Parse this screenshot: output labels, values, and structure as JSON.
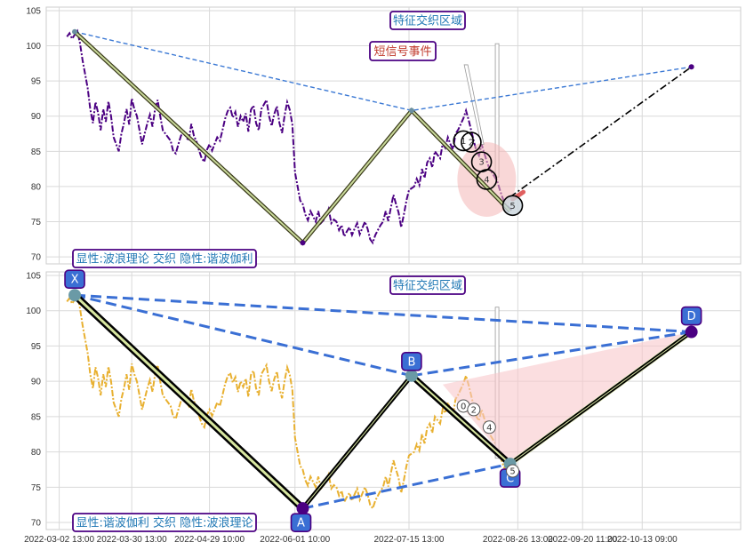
{
  "chart_data": [
    {
      "type": "line",
      "panel": "top",
      "ylim": [
        69,
        105.5
      ],
      "yticks": [
        70,
        75,
        80,
        85,
        90,
        95,
        100,
        105
      ],
      "grid": true,
      "price_series": {
        "color": "#4b0082",
        "style": "dash-dot",
        "values": [
          101.3,
          101.8,
          101,
          101.6,
          102.1,
          100.4,
          98,
          96,
          94,
          91,
          89,
          92,
          90.5,
          88,
          91,
          89.2,
          92.1,
          90,
          87,
          85,
          87.5,
          89,
          91,
          88.8,
          92.5,
          91,
          90,
          88,
          86,
          87.5,
          89,
          90.2,
          88.5,
          91,
          92.3,
          90,
          88,
          87,
          86.5,
          85,
          84.7,
          86,
          87.2,
          88,
          87,
          86.5,
          88.9,
          87.2,
          86.4,
          85.1,
          84,
          83.5,
          85.2,
          86,
          85.1,
          87,
          86.5,
          88,
          89.6,
          90.7,
          91.2,
          89.8,
          90.6,
          88.5,
          90,
          89.2,
          90.4,
          87.8,
          90.9,
          91.5,
          89,
          88,
          91,
          92.3,
          90,
          88.6,
          90.3,
          91.4,
          89,
          87.6,
          90.1,
          92,
          90.9,
          88.8,
          82,
          80,
          78,
          77.5,
          76,
          75.2,
          76.5,
          75,
          76.5,
          74.8,
          75.2,
          75.9,
          76.8,
          74.8,
          75.3,
          75,
          73.8,
          74.5,
          72.9,
          73.6,
          74.2,
          73.1,
          74,
          74.8,
          73.2,
          75,
          74,
          72.5,
          72,
          73.1,
          73.8,
          74.5,
          75,
          76.5,
          75.1,
          77,
          78.8,
          77.5,
          76.3,
          74.2,
          76,
          78,
          79.5,
          80,
          81.1,
          80.2,
          82.5,
          81.2,
          83.4,
          84,
          82.7,
          85,
          84.5,
          84,
          86.1,
          85.5,
          87,
          86,
          85.3,
          87.5,
          88.1,
          89.7,
          90.8,
          89.5,
          88,
          86.5,
          85,
          84.4,
          86,
          84.8,
          83.6,
          82.6,
          82,
          81.4,
          80.8,
          79.6,
          78.5,
          77.6,
          77.2,
          76.5
        ]
      },
      "zigzag": {
        "x": [
          "2022-03-08",
          "2022-06-04",
          "2022-07-16",
          "2022-08-23"
        ],
        "y": [
          102,
          72,
          90.8,
          76.5
        ]
      },
      "projection_blue": {
        "x": [
          "2022-03-08",
          "2022-07-16",
          "2022-11-01"
        ],
        "y": [
          102,
          90.8,
          97
        ]
      },
      "projection_black": {
        "x": [
          "2022-08-23",
          "2022-11-01"
        ],
        "y": [
          78.5,
          97
        ]
      },
      "wave_markers": [
        {
          "label": "1",
          "x": "2022-08-05",
          "y": 86.5
        },
        {
          "label": "2",
          "x": "2022-08-08",
          "y": 86.3
        },
        {
          "label": "3",
          "x": "2022-08-12",
          "y": 83.5
        },
        {
          "label": "4",
          "x": "2022-08-14",
          "y": 81
        },
        {
          "label": "5",
          "x": "2022-08-24",
          "y": 77.3
        }
      ],
      "annotations": {
        "feature_zone": "特征交织区域",
        "short_signal": "短信号事件",
        "bottom_left": "显性:波浪理论 交织 隐性:谐波伽利"
      }
    },
    {
      "type": "line",
      "panel": "bottom",
      "ylim": [
        69,
        105.5
      ],
      "yticks": [
        70,
        75,
        80,
        85,
        90,
        95,
        100,
        105
      ],
      "grid": true,
      "price_series": {
        "color": "#e8b030",
        "style": "dash-dot"
      },
      "harmonic_points": [
        {
          "label": "X",
          "x": "2022-03-08",
          "y": 102.2
        },
        {
          "label": "A",
          "x": "2022-06-04",
          "y": 72
        },
        {
          "label": "B",
          "x": "2022-07-16",
          "y": 90.8
        },
        {
          "label": "C",
          "x": "2022-08-23",
          "y": 78.3
        },
        {
          "label": "D",
          "x": "2022-11-01",
          "y": 97
        }
      ],
      "wave_markers": [
        {
          "label": "0",
          "x": "2022-08-05",
          "y": 86.5
        },
        {
          "label": "2",
          "x": "2022-08-09",
          "y": 86
        },
        {
          "label": "4",
          "x": "2022-08-15",
          "y": 83.5
        },
        {
          "label": "5",
          "x": "2022-08-24",
          "y": 77.3
        }
      ],
      "annotations": {
        "feature_zone": "特征交织区域",
        "bottom_left": "显性:谐波伽利 交织 隐性:波浪理论"
      },
      "x_tick_labels": [
        "2022-03-02 13:00",
        "2022-03-30 13:00",
        "2022-04-29 10:00",
        "2022-06-01 10:00",
        "2022-07-15 13:00",
        "2022-08-26 13:00",
        "2022-09-20 11:00",
        "2022-10-13 09:00"
      ]
    }
  ]
}
